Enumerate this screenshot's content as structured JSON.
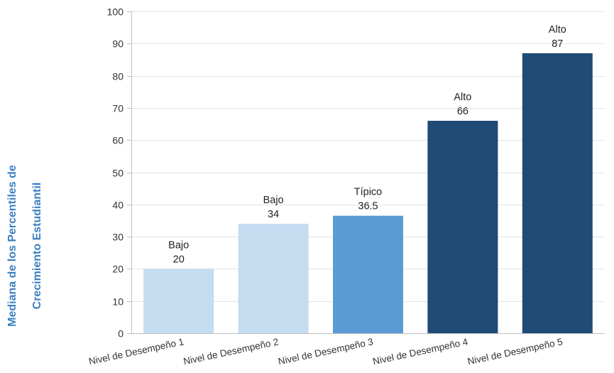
{
  "chart_data": {
    "type": "bar",
    "categories": [
      "Nivel de Desempeño 1",
      "Nivel de Desempeño 2",
      "Nivel de Desempeño 3",
      "Nivel de Desempeño 4",
      "Nivel de Desempeño 5"
    ],
    "values": [
      20,
      34,
      36.5,
      66,
      87
    ],
    "bar_annotations": [
      "Bajo",
      "Bajo",
      "Típico",
      "Alto",
      "Alto"
    ],
    "value_labels": [
      "20",
      "34",
      "36.5",
      "66",
      "87"
    ],
    "bar_colors": [
      "#c5dcf1",
      "#c5dcf1",
      "#5b9bd5",
      "#1f4b75",
      "#1f4b75"
    ],
    "ylabel_lines": [
      "Mediana de los Percentiles de",
      "Crecimiento Estudiantil"
    ],
    "ylim": [
      0,
      100
    ],
    "yticks": [
      0,
      10,
      20,
      30,
      40,
      50,
      60,
      70,
      80,
      90,
      100
    ],
    "grid": true,
    "legend": "none",
    "ylabel_color": "#3a7fc1"
  }
}
